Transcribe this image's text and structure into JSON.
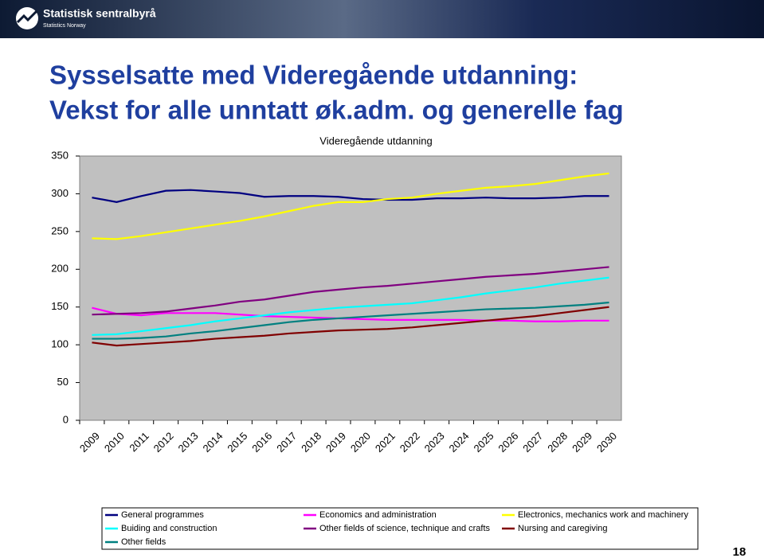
{
  "slide": {
    "logo_name": "Statistisk sentralbyrå",
    "logo_sub": "Statistics Norway",
    "title_lines": [
      "Sysselsatte med Videregående utdanning:",
      "Vekst for alle unntatt øk.adm. og generelle fag"
    ],
    "page_number": "18"
  },
  "chart_data": {
    "type": "line",
    "title": "Videregående utdanning",
    "categories": [
      "2009",
      "2010",
      "2011",
      "2012",
      "2013",
      "2014",
      "2015",
      "2016",
      "2017",
      "2018",
      "2019",
      "2020",
      "2021",
      "2022",
      "2023",
      "2024",
      "2025",
      "2026",
      "2027",
      "2028",
      "2029",
      "2030"
    ],
    "ylim": [
      0,
      350
    ],
    "yticks": [
      0,
      50,
      100,
      150,
      200,
      250,
      300,
      350
    ],
    "grid": false,
    "series": [
      {
        "name": "General programmes",
        "color": "#000080",
        "values": [
          295,
          289,
          297,
          304,
          305,
          303,
          301,
          296,
          297,
          297,
          296,
          293,
          292,
          292,
          294,
          294,
          295,
          294,
          294,
          295,
          297,
          297
        ]
      },
      {
        "name": "Economics and administration",
        "color": "#ff00ff",
        "values": [
          149,
          141,
          139,
          142,
          142,
          142,
          140,
          138,
          137,
          136,
          135,
          134,
          133,
          133,
          133,
          133,
          132,
          132,
          131,
          131,
          132,
          132
        ]
      },
      {
        "name": "Electronics, mechanics work and machinery",
        "color": "#ffff00",
        "values": [
          241,
          240,
          244,
          249,
          254,
          259,
          264,
          270,
          277,
          284,
          289,
          289,
          293,
          295,
          300,
          304,
          308,
          310,
          313,
          318,
          323,
          327
        ]
      },
      {
        "name": "Buiding and construction",
        "color": "#00ffff",
        "values": [
          113,
          114,
          118,
          122,
          126,
          131,
          135,
          139,
          143,
          146,
          149,
          151,
          153,
          155,
          159,
          163,
          168,
          172,
          176,
          181,
          185,
          189
        ]
      },
      {
        "name": "Other fields of science, technique and crafts",
        "color": "#800080",
        "values": [
          140,
          141,
          142,
          144,
          148,
          152,
          157,
          160,
          165,
          170,
          173,
          176,
          178,
          181,
          184,
          187,
          190,
          192,
          194,
          197,
          200,
          203
        ]
      },
      {
        "name": "Nursing and caregiving",
        "color": "#800000",
        "values": [
          103,
          99,
          101,
          103,
          105,
          108,
          110,
          112,
          115,
          117,
          119,
          120,
          121,
          123,
          126,
          129,
          132,
          135,
          138,
          142,
          146,
          150
        ]
      },
      {
        "name": "Other fields",
        "color": "#008080",
        "values": [
          108,
          108,
          109,
          111,
          115,
          118,
          122,
          126,
          130,
          133,
          135,
          137,
          139,
          141,
          143,
          145,
          147,
          148,
          149,
          151,
          153,
          156
        ]
      }
    ]
  }
}
